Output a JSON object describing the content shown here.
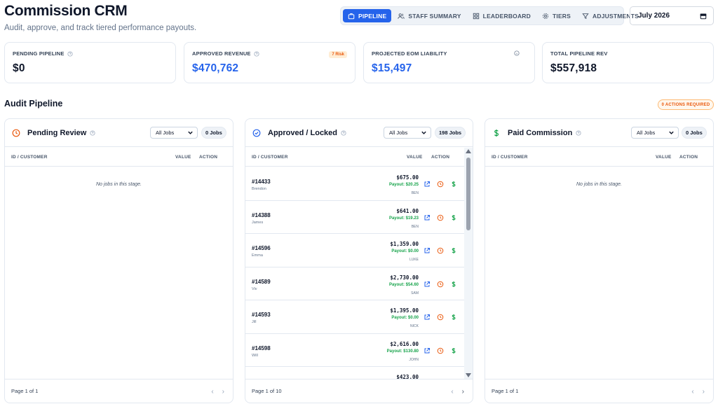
{
  "header": {
    "title": "Commission CRM",
    "subtitle": "Audit, approve, and track tiered performance payouts."
  },
  "nav": {
    "tabs": [
      {
        "label": "PIPELINE",
        "icon": "briefcase-icon",
        "active": true
      },
      {
        "label": "STAFF SUMMARY",
        "icon": "users-icon",
        "active": false
      },
      {
        "label": "LEADERBOARD",
        "icon": "grid-icon",
        "active": false
      },
      {
        "label": "TIERS",
        "icon": "gear-icon",
        "active": false
      },
      {
        "label": "ADJUSTMENTS",
        "icon": "filter-icon",
        "active": false
      }
    ],
    "month": "July 2026"
  },
  "kpis": {
    "pending_pipeline": {
      "label": "PENDING PIPELINE",
      "value": "$0"
    },
    "approved_revenue": {
      "label": "APPROVED REVENUE",
      "value": "$470,762",
      "badge": "7 Risk"
    },
    "projected_eom": {
      "label": "PROJECTED EOM LIABILITY",
      "value": "$15,497"
    },
    "total_pipeline": {
      "label": "TOTAL PIPELINE REV",
      "value": "$557,918"
    }
  },
  "audit": {
    "title": "Audit Pipeline",
    "actions_badge": "0 ACTIONS REQUIRED"
  },
  "table_headers": {
    "id": "ID / CUSTOMER",
    "value": "VALUE",
    "action": "ACTION"
  },
  "columns": {
    "pending": {
      "title": "Pending Review",
      "filter": "All Jobs",
      "count": "0 Jobs",
      "empty": "No jobs in this stage.",
      "page": "Page 1 of 1"
    },
    "approved": {
      "title": "Approved / Locked",
      "filter": "All Jobs",
      "count": "198 Jobs",
      "page": "Page 1 of 10",
      "rows": [
        {
          "id": "#14433",
          "customer": "Brendon",
          "value": "$675.00",
          "payout": "Payout: $20.25",
          "staff": "BEN"
        },
        {
          "id": "#14388",
          "customer": "James",
          "value": "$641.00",
          "payout": "Payout: $19.23",
          "staff": "BEN"
        },
        {
          "id": "#14596",
          "customer": "Emma",
          "value": "$1,359.00",
          "payout": "Payout: $0.00",
          "staff": "LUKE"
        },
        {
          "id": "#14589",
          "customer": "Viv",
          "value": "$2,730.00",
          "payout": "Payout: $54.60",
          "staff": "SAM"
        },
        {
          "id": "#14593",
          "customer": "Jill",
          "value": "$1,395.00",
          "payout": "Payout: $0.00",
          "staff": "NICK"
        },
        {
          "id": "#14598",
          "customer": "Will",
          "value": "$2,616.00",
          "payout": "Payout: $130.80",
          "staff": "JOHN"
        },
        {
          "id": "#14587",
          "customer": "",
          "value": "$423.00",
          "payout": "",
          "staff": ""
        }
      ]
    },
    "paid": {
      "title": "Paid Commission",
      "filter": "All Jobs",
      "count": "0 Jobs",
      "empty": "No jobs in this stage.",
      "page": "Page 1 of 1"
    }
  },
  "colors": {
    "accent": "#2563eb",
    "orange": "#ea580c",
    "green": "#16a34a"
  }
}
